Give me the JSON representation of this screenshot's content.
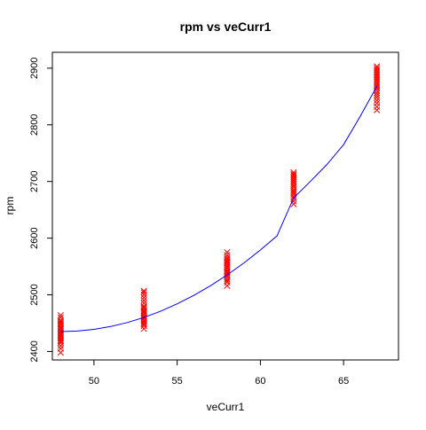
{
  "chart_data": {
    "type": "scatter",
    "title": "rpm vs veCurr1",
    "xlabel": "veCurr1",
    "ylabel": "rpm",
    "xlim": [
      47.5,
      68.3
    ],
    "ylim": [
      2385,
      2928
    ],
    "x_ticks": [
      50,
      55,
      60,
      65
    ],
    "y_ticks": [
      2400,
      2500,
      2600,
      2700,
      2800,
      2900
    ],
    "grid": false,
    "legend": "none",
    "point_color": "#ff0000",
    "marker": "x",
    "curve_color": "#0000ff",
    "series": [
      {
        "type": "scatter",
        "x": [
          48,
          48,
          48,
          48,
          48,
          48,
          48,
          48,
          48,
          48,
          48,
          48,
          48,
          48,
          48,
          48,
          48,
          48,
          48,
          48,
          48,
          48,
          53,
          53,
          53,
          53,
          53,
          53,
          53,
          53,
          53,
          53,
          53,
          53,
          53,
          53,
          53,
          53,
          53,
          53,
          53,
          53,
          53,
          53,
          58,
          58,
          58,
          58,
          58,
          58,
          58,
          58,
          58,
          58,
          58,
          58,
          58,
          58,
          58,
          58,
          58,
          58,
          58,
          58,
          62,
          62,
          62,
          62,
          62,
          62,
          62,
          62,
          62,
          62,
          62,
          62,
          62,
          62,
          62,
          62,
          62,
          62,
          67,
          67,
          67,
          67,
          67,
          67,
          67,
          67,
          67,
          67,
          67,
          67,
          67,
          67,
          67,
          67,
          67,
          67,
          67,
          67,
          67,
          67
        ],
        "y": [
          2398,
          2405,
          2410,
          2415,
          2418,
          2420,
          2423,
          2425,
          2428,
          2430,
          2432,
          2435,
          2437,
          2440,
          2442,
          2445,
          2448,
          2450,
          2453,
          2455,
          2460,
          2464,
          2440,
          2445,
          2448,
          2450,
          2453,
          2455,
          2458,
          2460,
          2462,
          2465,
          2468,
          2470,
          2472,
          2475,
          2478,
          2480,
          2485,
          2490,
          2495,
          2500,
          2504,
          2507,
          2516,
          2522,
          2525,
          2528,
          2532,
          2535,
          2538,
          2540,
          2542,
          2545,
          2548,
          2550,
          2553,
          2556,
          2558,
          2560,
          2563,
          2566,
          2570,
          2575,
          2660,
          2665,
          2670,
          2673,
          2677,
          2680,
          2683,
          2686,
          2690,
          2693,
          2696,
          2699,
          2702,
          2705,
          2708,
          2711,
          2713,
          2716,
          2826,
          2832,
          2838,
          2843,
          2848,
          2852,
          2856,
          2860,
          2864,
          2867,
          2870,
          2873,
          2876,
          2879,
          2882,
          2885,
          2888,
          2891,
          2894,
          2897,
          2900,
          2903
        ]
      },
      {
        "type": "line",
        "x": [
          48,
          49,
          50,
          51,
          52,
          53,
          54,
          55,
          56,
          57,
          58,
          59,
          60,
          61,
          62,
          63,
          64,
          65,
          66,
          67
        ],
        "y": [
          2435,
          2436,
          2439,
          2444,
          2451,
          2460,
          2471,
          2484,
          2499,
          2516,
          2535,
          2556,
          2579,
          2604,
          2671,
          2700,
          2730,
          2765,
          2815,
          2868
        ]
      }
    ]
  }
}
